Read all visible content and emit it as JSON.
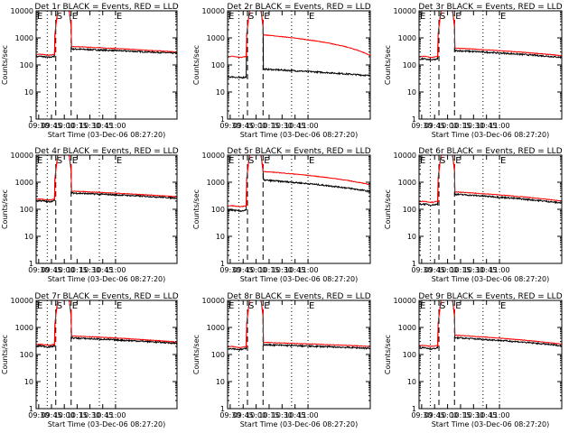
{
  "chart_data": {
    "type": "line",
    "layout": "3x3 grid",
    "ylabel": "Counts/sec",
    "xlabel": "Start Time (03-Dec-06 08:27:20)",
    "ylim": [
      1,
      10000
    ],
    "yscale": "log",
    "yticks": [
      1,
      10,
      100,
      1000,
      10000
    ],
    "xlim_minutes": [
      0,
      165
    ],
    "xticks": [
      "09:30",
      "09:45",
      "10:00",
      "10:15",
      "10:30",
      "10:45",
      "11:00"
    ],
    "series_colors": {
      "events": "#000000",
      "lld": "#ff0000"
    },
    "markers": [
      {
        "label": "E",
        "time": "09:27",
        "style": "dotted"
      },
      {
        "label": "",
        "time": "09:40",
        "style": "dotted"
      },
      {
        "label": "S",
        "time": "09:50",
        "style": "dashed"
      },
      {
        "label": "E",
        "time": "10:08",
        "style": "dashed"
      },
      {
        "label": "",
        "time": "10:41",
        "style": "dotted"
      },
      {
        "label": "E",
        "time": "11:00",
        "style": "dotted"
      }
    ],
    "panels": [
      {
        "title": "Det 1r BLACK = Events, RED = LLD",
        "black": {
          "pre": 200,
          "post_start": 390,
          "post_end": 270
        },
        "red": {
          "pre": 240,
          "post_start": 480,
          "post_end": 300
        }
      },
      {
        "title": "Det 2r BLACK = Events, RED = LLD",
        "black": {
          "pre": 35,
          "post_start": 70,
          "post_end": 40
        },
        "red": {
          "pre": 200,
          "post_start": 1300,
          "post_end": 220
        }
      },
      {
        "title": "Det 3r BLACK = Events, RED = LLD",
        "black": {
          "pre": 160,
          "post_start": 340,
          "post_end": 190
        },
        "red": {
          "pre": 200,
          "post_start": 420,
          "post_end": 220
        }
      },
      {
        "title": "Det 4r BLACK = Events, RED = LLD",
        "black": {
          "pre": 200,
          "post_start": 400,
          "post_end": 260
        },
        "red": {
          "pre": 230,
          "post_start": 470,
          "post_end": 290
        }
      },
      {
        "title": "Det 5r BLACK = Events, RED = LLD",
        "black": {
          "pre": 90,
          "post_start": 1200,
          "post_end": 450
        },
        "red": {
          "pre": 130,
          "post_start": 2500,
          "post_end": 800
        }
      },
      {
        "title": "Det 6r BLACK = Events, RED = LLD",
        "black": {
          "pre": 150,
          "post_start": 360,
          "post_end": 170
        },
        "red": {
          "pre": 190,
          "post_start": 440,
          "post_end": 200
        }
      },
      {
        "title": "Det 7r BLACK = Events, RED = LLD",
        "black": {
          "pre": 200,
          "post_start": 410,
          "post_end": 260
        },
        "red": {
          "pre": 230,
          "post_start": 490,
          "post_end": 290
        }
      },
      {
        "title": "Det 8r BLACK = Events, RED = LLD",
        "black": {
          "pre": 160,
          "post_start": 230,
          "post_end": 170
        },
        "red": {
          "pre": 190,
          "post_start": 280,
          "post_end": 200
        }
      },
      {
        "title": "Det 9r BLACK = Events, RED = LLD",
        "black": {
          "pre": 170,
          "post_start": 420,
          "post_end": 210
        },
        "red": {
          "pre": 210,
          "post_start": 520,
          "post_end": 240
        }
      }
    ]
  }
}
